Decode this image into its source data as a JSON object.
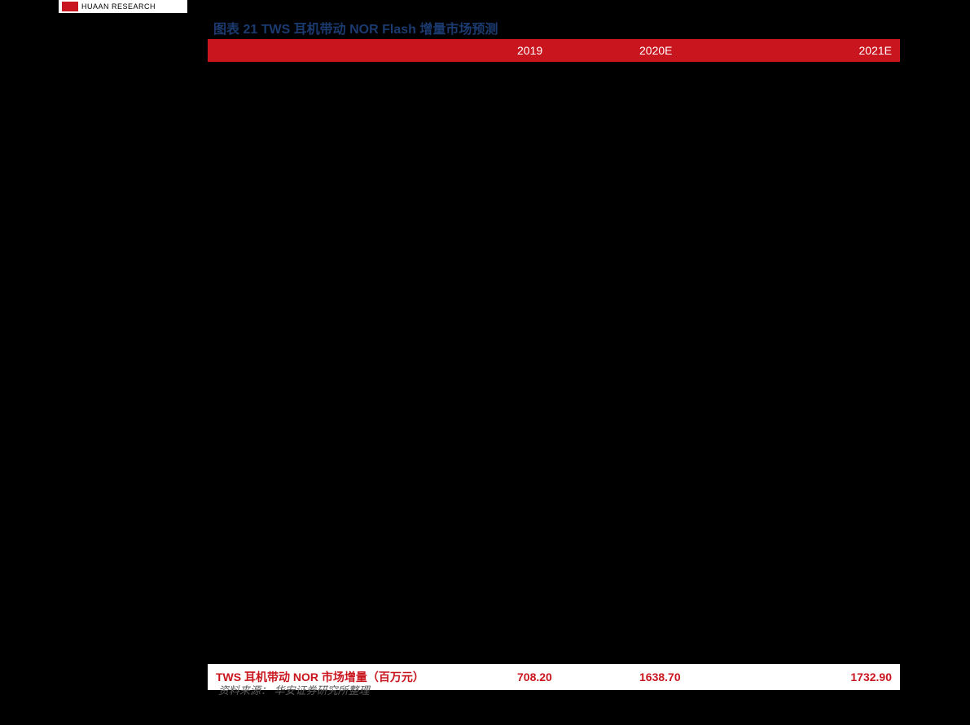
{
  "logo": {
    "text": "HUAAN RESEARCH",
    "mark_color": "#c9151e",
    "box_bg": "#ffffff"
  },
  "title": "图表 21    TWS 耳机带动 NOR Flash 增量市场预测",
  "title_color": "#1b3a6f",
  "title_fontsize": 16,
  "table": {
    "header_bg": "#c9151e",
    "header_text_color": "#ffffff",
    "columns": [
      "",
      "2019",
      "2020E",
      "2021E"
    ],
    "body_bg": "#000000",
    "summary": {
      "label": "TWS 耳机带动 NOR 市场增量（百万元）",
      "values": [
        "708.20",
        "1638.70",
        "1732.90"
      ],
      "bg": "#ffffff",
      "text_color": "#c9151e"
    }
  },
  "source_label": "资料来源：",
  "source_value": "华安证券研究所整理",
  "source_color": "#5a5a5a",
  "page_bg": "#000000"
}
